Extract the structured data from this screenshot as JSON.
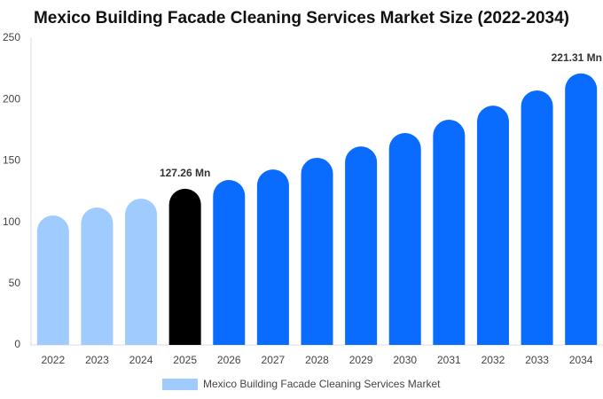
{
  "chart_data": {
    "type": "bar",
    "title": "Mexico Building Facade Cleaning Services Market Size (2022-2034)",
    "categories": [
      "2022",
      "2023",
      "2024",
      "2025",
      "2026",
      "2027",
      "2028",
      "2029",
      "2030",
      "2031",
      "2032",
      "2033",
      "2034"
    ],
    "series": [
      {
        "name": "Mexico Building Facade Cleaning Services Market",
        "color": "#a0cbff",
        "values": [
          105.5,
          112,
          119.2,
          127.26,
          134.4,
          143,
          152.5,
          161.8,
          172.7,
          183.5,
          195,
          207.4,
          221.31
        ],
        "value_labels": [
          null,
          null,
          null,
          "127.26 Mn",
          null,
          null,
          null,
          null,
          null,
          null,
          null,
          null,
          "221.31 Mn"
        ],
        "colors": [
          "#a0cbff",
          "#a0cbff",
          "#a0cbff",
          "#000000",
          "#0a6cff",
          "#0a6cff",
          "#0a6cff",
          "#0a6cff",
          "#0a6cff",
          "#0a6cff",
          "#0a6cff",
          "#0a6cff",
          "#0a6cff"
        ]
      }
    ],
    "ylim": [
      0,
      250
    ],
    "yticks": [
      0,
      50,
      100,
      150,
      200,
      250
    ],
    "grid": false
  }
}
